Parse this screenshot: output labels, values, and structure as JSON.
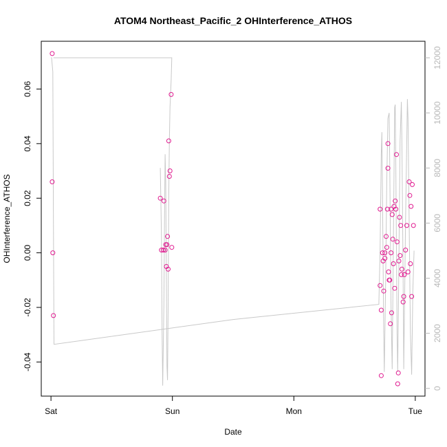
{
  "chart_data": {
    "type": "scatter",
    "title": "ATOM4 Northeast_Pacific_2 OHInterference_ATHOS",
    "xlabel": "Date",
    "ylabel": "OHInterference_ATHOS",
    "x_ticks": [
      {
        "value": 0,
        "label": "Sat"
      },
      {
        "value": 1,
        "label": "Sun"
      },
      {
        "value": 2,
        "label": "Mon"
      },
      {
        "value": 3,
        "label": "Tue"
      }
    ],
    "xlim": [
      -0.08,
      3.08
    ],
    "y_ticks": [
      {
        "value": -0.04,
        "label": "-0.04"
      },
      {
        "value": -0.02,
        "label": "-0.02"
      },
      {
        "value": 0.0,
        "label": "0.00"
      },
      {
        "value": 0.02,
        "label": "0.02"
      },
      {
        "value": 0.04,
        "label": "0.04"
      },
      {
        "value": 0.06,
        "label": "0.06"
      }
    ],
    "ylim": [
      -0.0525,
      0.0775
    ],
    "y2_ticks": [
      {
        "value": 0,
        "label": "0"
      },
      {
        "value": 2000,
        "label": "2000"
      },
      {
        "value": 4000,
        "label": "4000"
      },
      {
        "value": 6000,
        "label": "6000"
      },
      {
        "value": 8000,
        "label": "8000"
      },
      {
        "value": 10000,
        "label": "10000"
      },
      {
        "value": 12000,
        "label": "12000"
      }
    ],
    "y2lim": [
      -280,
      12600
    ],
    "grid": false,
    "colors": {
      "points": "#e0198f",
      "altitude": "#c8c8c8",
      "right_axis": "#b8b8b8"
    },
    "series": [
      {
        "marker": "circle",
        "points": [
          [
            0.01,
            0.073
          ],
          [
            0.01,
            0.026
          ],
          [
            0.015,
            0.0
          ],
          [
            0.02,
            -0.023
          ],
          [
            0.9,
            0.02
          ],
          [
            0.91,
            0.001
          ],
          [
            0.925,
            0.001
          ],
          [
            0.93,
            0.019
          ],
          [
            0.94,
            0.001
          ],
          [
            0.945,
            0.003
          ],
          [
            0.95,
            -0.005
          ],
          [
            0.955,
            0.003
          ],
          [
            0.96,
            0.006
          ],
          [
            0.965,
            -0.006
          ],
          [
            0.97,
            0.041
          ],
          [
            0.975,
            0.028
          ],
          [
            0.98,
            0.03
          ],
          [
            0.99,
            0.058
          ],
          [
            0.995,
            0.002
          ],
          [
            2.71,
            0.016
          ],
          [
            2.71,
            -0.012
          ],
          [
            2.72,
            -0.045
          ],
          [
            2.72,
            -0.021
          ],
          [
            2.73,
            0.0
          ],
          [
            2.735,
            -0.003
          ],
          [
            2.74,
            -0.014
          ],
          [
            2.75,
            0.0
          ],
          [
            2.75,
            -0.002
          ],
          [
            2.76,
            0.006
          ],
          [
            2.765,
            0.002
          ],
          [
            2.77,
            0.016
          ],
          [
            2.775,
            0.031
          ],
          [
            2.775,
            0.04
          ],
          [
            2.78,
            -0.007
          ],
          [
            2.785,
            -0.01
          ],
          [
            2.79,
            -0.01
          ],
          [
            2.795,
            -0.026
          ],
          [
            2.8,
            0.0
          ],
          [
            2.8,
            0.016
          ],
          [
            2.805,
            -0.022
          ],
          [
            2.81,
            0.014
          ],
          [
            2.815,
            0.005
          ],
          [
            2.82,
            -0.004
          ],
          [
            2.825,
            0.017
          ],
          [
            2.83,
            -0.013
          ],
          [
            2.835,
            0.019
          ],
          [
            2.84,
            0.016
          ],
          [
            2.845,
            0.036
          ],
          [
            2.85,
            0.004
          ],
          [
            2.855,
            -0.048
          ],
          [
            2.86,
            -0.044
          ],
          [
            2.865,
            -0.003
          ],
          [
            2.87,
            0.013
          ],
          [
            2.875,
            -0.001
          ],
          [
            2.88,
            0.01
          ],
          [
            2.885,
            -0.008
          ],
          [
            2.89,
            -0.006
          ],
          [
            2.9,
            -0.018
          ],
          [
            2.905,
            -0.016
          ],
          [
            2.91,
            -0.008
          ],
          [
            2.92,
            0.001
          ],
          [
            2.93,
            0.01
          ],
          [
            2.94,
            -0.007
          ],
          [
            2.95,
            0.026
          ],
          [
            2.955,
            0.021
          ],
          [
            2.96,
            -0.004
          ],
          [
            2.965,
            0.017
          ],
          [
            2.97,
            -0.016
          ],
          [
            2.975,
            0.025
          ],
          [
            2.985,
            0.01
          ]
        ]
      },
      {
        "axis": "right",
        "line": [
          [
            0.0,
            12000
          ],
          [
            0.005,
            12000
          ],
          [
            0.015,
            11500
          ],
          [
            0.02,
            6000
          ],
          [
            0.025,
            1600
          ],
          [
            1.5,
            2500
          ],
          [
            2.7,
            3050
          ],
          [
            2.71,
            5000
          ],
          [
            2.72,
            8500
          ],
          [
            2.725,
            9300
          ],
          [
            2.73,
            7000
          ],
          [
            2.74,
            2000
          ],
          [
            2.745,
            600
          ],
          [
            2.755,
            3500
          ],
          [
            2.765,
            7500
          ],
          [
            2.775,
            9800
          ],
          [
            2.785,
            10000
          ],
          [
            2.79,
            8000
          ],
          [
            2.8,
            3000
          ],
          [
            2.81,
            700
          ],
          [
            2.82,
            5500
          ],
          [
            2.83,
            10200
          ],
          [
            2.835,
            10300
          ],
          [
            2.84,
            8000
          ],
          [
            2.85,
            2000
          ],
          [
            2.855,
            600
          ],
          [
            2.865,
            4500
          ],
          [
            2.875,
            9000
          ],
          [
            2.885,
            10400
          ],
          [
            2.89,
            9000
          ],
          [
            2.9,
            4000
          ],
          [
            2.905,
            700
          ],
          [
            2.92,
            6000
          ],
          [
            2.935,
            10500
          ],
          [
            2.94,
            9800
          ],
          [
            2.95,
            6000
          ],
          [
            2.96,
            2000
          ],
          [
            2.97,
            500
          ],
          [
            2.98,
            3500
          ],
          [
            2.99,
            5000
          ]
        ]
      },
      {
        "axis": "right",
        "line": [
          [
            0.9,
            8000
          ],
          [
            0.91,
            5500
          ],
          [
            0.915,
            2000
          ],
          [
            0.92,
            100
          ],
          [
            0.93,
            3000
          ],
          [
            0.935,
            6000
          ],
          [
            0.94,
            8500
          ],
          [
            0.945,
            7500
          ],
          [
            0.95,
            4000
          ],
          [
            0.955,
            800
          ],
          [
            0.96,
            300
          ],
          [
            0.965,
            3000
          ],
          [
            0.97,
            7000
          ],
          [
            0.975,
            9000
          ],
          [
            0.98,
            10200
          ],
          [
            0.99,
            11200
          ],
          [
            0.995,
            12000
          ],
          [
            0.02,
            12000
          ]
        ]
      }
    ]
  }
}
